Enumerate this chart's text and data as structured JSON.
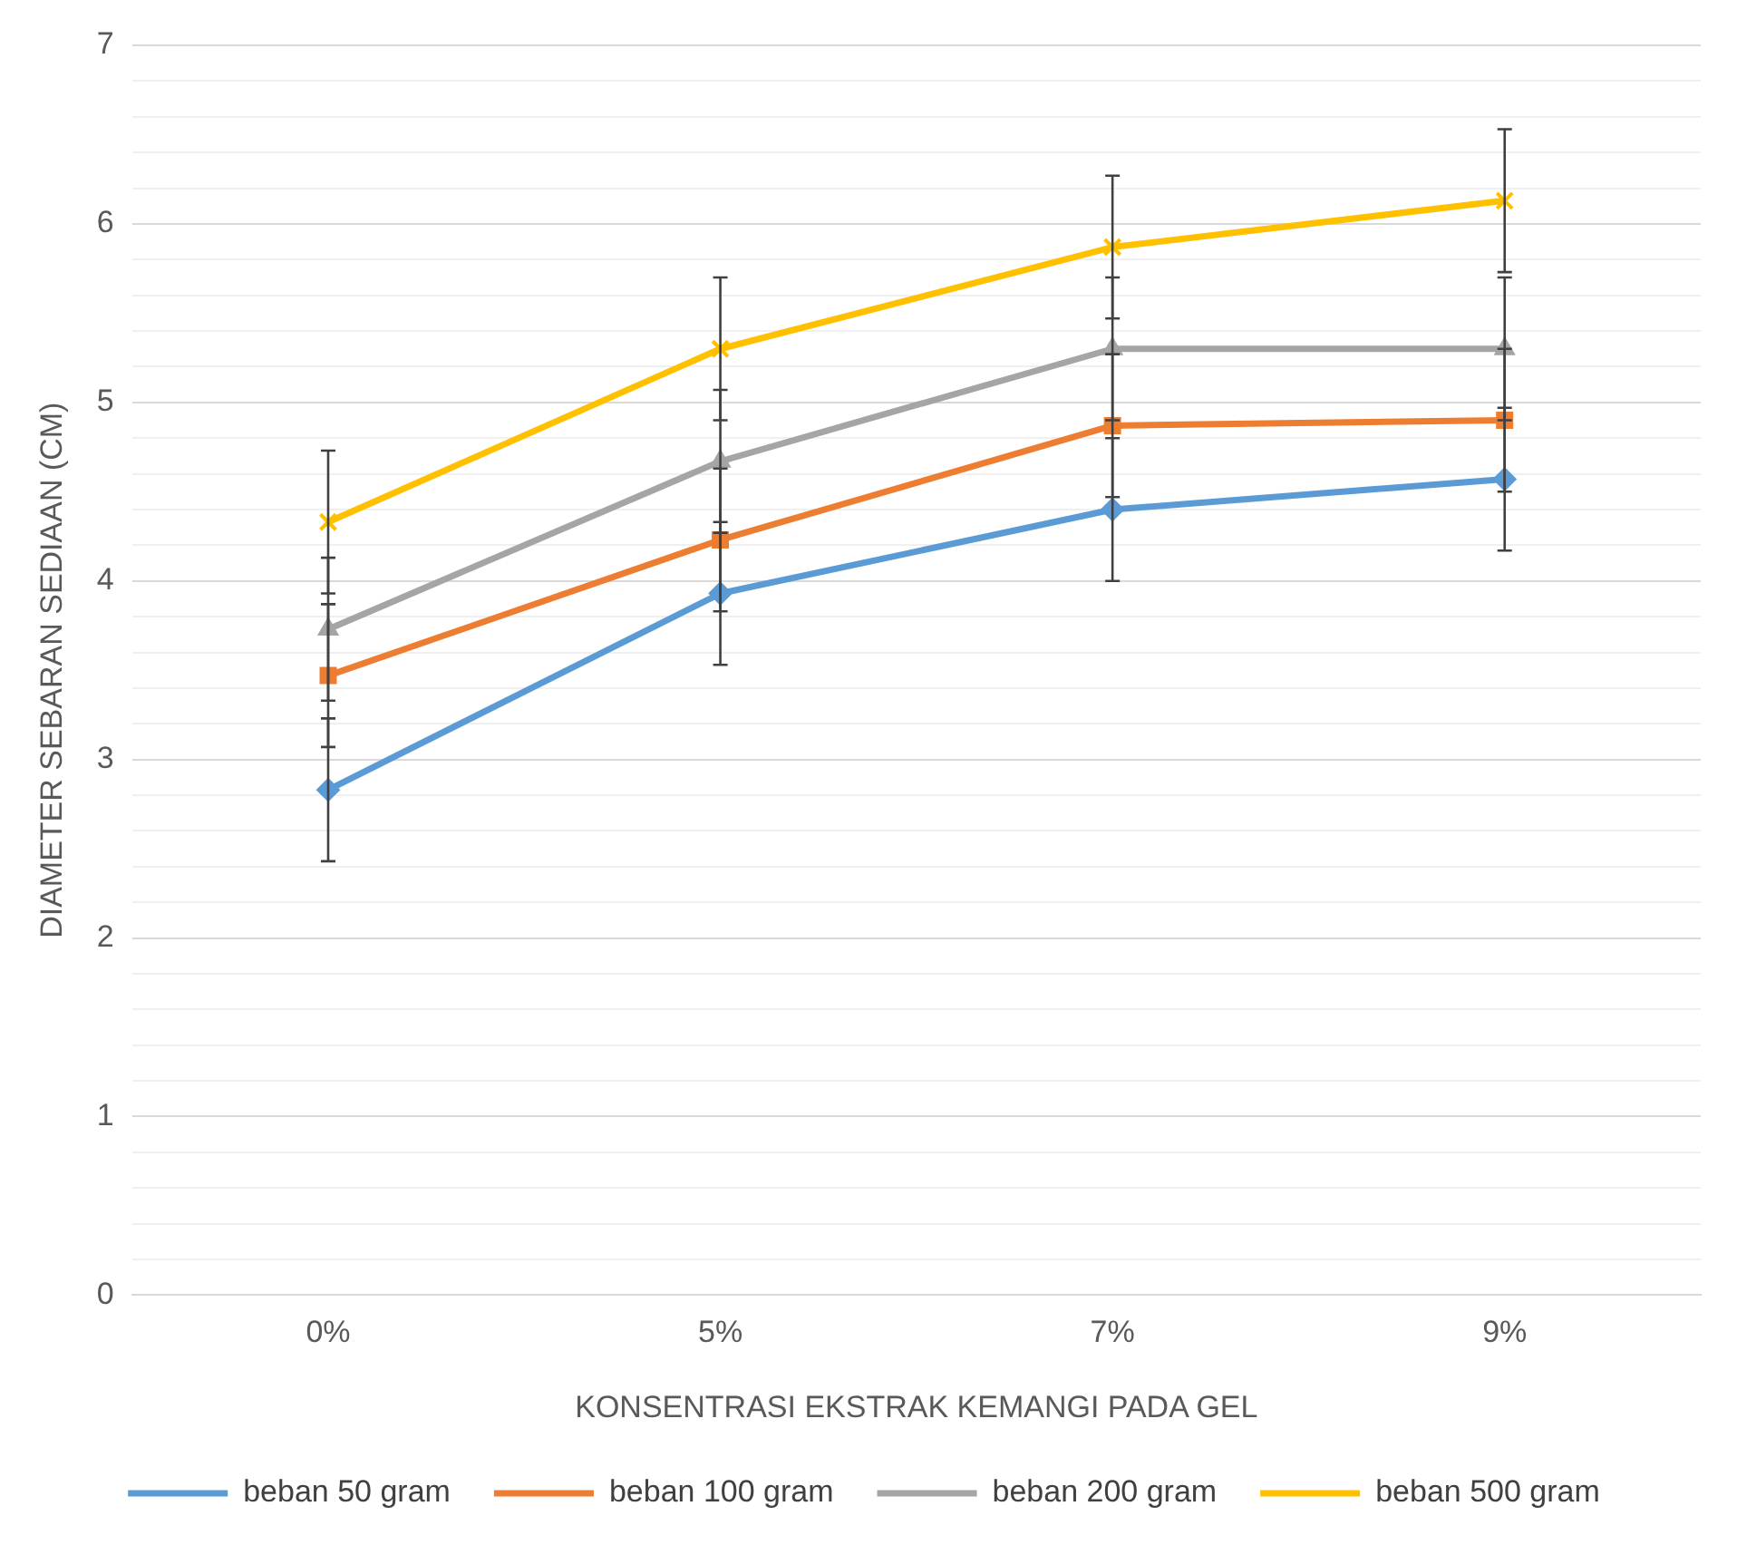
{
  "chart_data": {
    "type": "line",
    "xlabel": "KONSENTRASI EKSTRAK KEMANGI PADA GEL",
    "ylabel": "DIAMETER SEBARAN SEDIAAN (CM)",
    "categories": [
      "0%",
      "5%",
      "7%",
      "9%"
    ],
    "series": [
      {
        "name": "beban 50 gram",
        "color": "#5b9bd5",
        "marker": "diamond",
        "values": [
          2.83,
          3.93,
          4.4,
          4.57
        ],
        "errors": [
          0.4,
          0.4,
          0.4,
          0.4
        ]
      },
      {
        "name": "beban 100 gram",
        "color": "#ed7d31",
        "marker": "square",
        "values": [
          3.47,
          4.23,
          4.87,
          4.9
        ],
        "errors": [
          0.4,
          0.4,
          0.4,
          0.4
        ]
      },
      {
        "name": "beban 200 gram",
        "color": "#a5a5a5",
        "marker": "triangle",
        "values": [
          3.73,
          4.67,
          5.3,
          5.3
        ],
        "errors": [
          0.4,
          0.4,
          0.4,
          0.4
        ]
      },
      {
        "name": "beban 500 gram",
        "color": "#ffc000",
        "marker": "cross",
        "values": [
          4.33,
          5.3,
          5.87,
          6.13
        ],
        "errors": [
          0.4,
          0.4,
          0.4,
          0.4
        ]
      }
    ],
    "ylim": [
      0,
      7
    ],
    "yticks": [
      0,
      {
        "value": 0.2,
        "label": null
      },
      {
        "value": 0.4,
        "label": null
      },
      {
        "value": 0.6,
        "label": null
      },
      {
        "value": 0.8,
        "label": null
      },
      1,
      {
        "value": 1.2,
        "label": null
      },
      {
        "value": 1.4,
        "label": null
      },
      {
        "value": 1.6,
        "label": null
      },
      {
        "value": 1.8,
        "label": null
      },
      2,
      {
        "value": 2.2,
        "label": null
      },
      {
        "value": 2.4,
        "label": null
      },
      {
        "value": 2.6,
        "label": null
      },
      {
        "value": 2.8,
        "label": null
      },
      3,
      {
        "value": 3.2,
        "label": null
      },
      {
        "value": 3.4,
        "label": null
      },
      {
        "value": 3.6,
        "label": null
      },
      {
        "value": 3.8,
        "label": null
      },
      4,
      {
        "value": 4.2,
        "label": null
      },
      {
        "value": 4.4,
        "label": null
      },
      {
        "value": 4.6,
        "label": null
      },
      {
        "value": 4.8,
        "label": null
      },
      5,
      {
        "value": 5.2,
        "label": null
      },
      {
        "value": 5.4,
        "label": null
      },
      {
        "value": 5.6,
        "label": null
      },
      {
        "value": 5.8,
        "label": null
      },
      6,
      {
        "value": 6.2,
        "label": null
      },
      {
        "value": 6.4,
        "label": null
      },
      {
        "value": 6.6,
        "label": null
      },
      {
        "value": 6.8,
        "label": null
      },
      7
    ],
    "grid": "y",
    "legend": "bottom",
    "line_style": "solid"
  }
}
